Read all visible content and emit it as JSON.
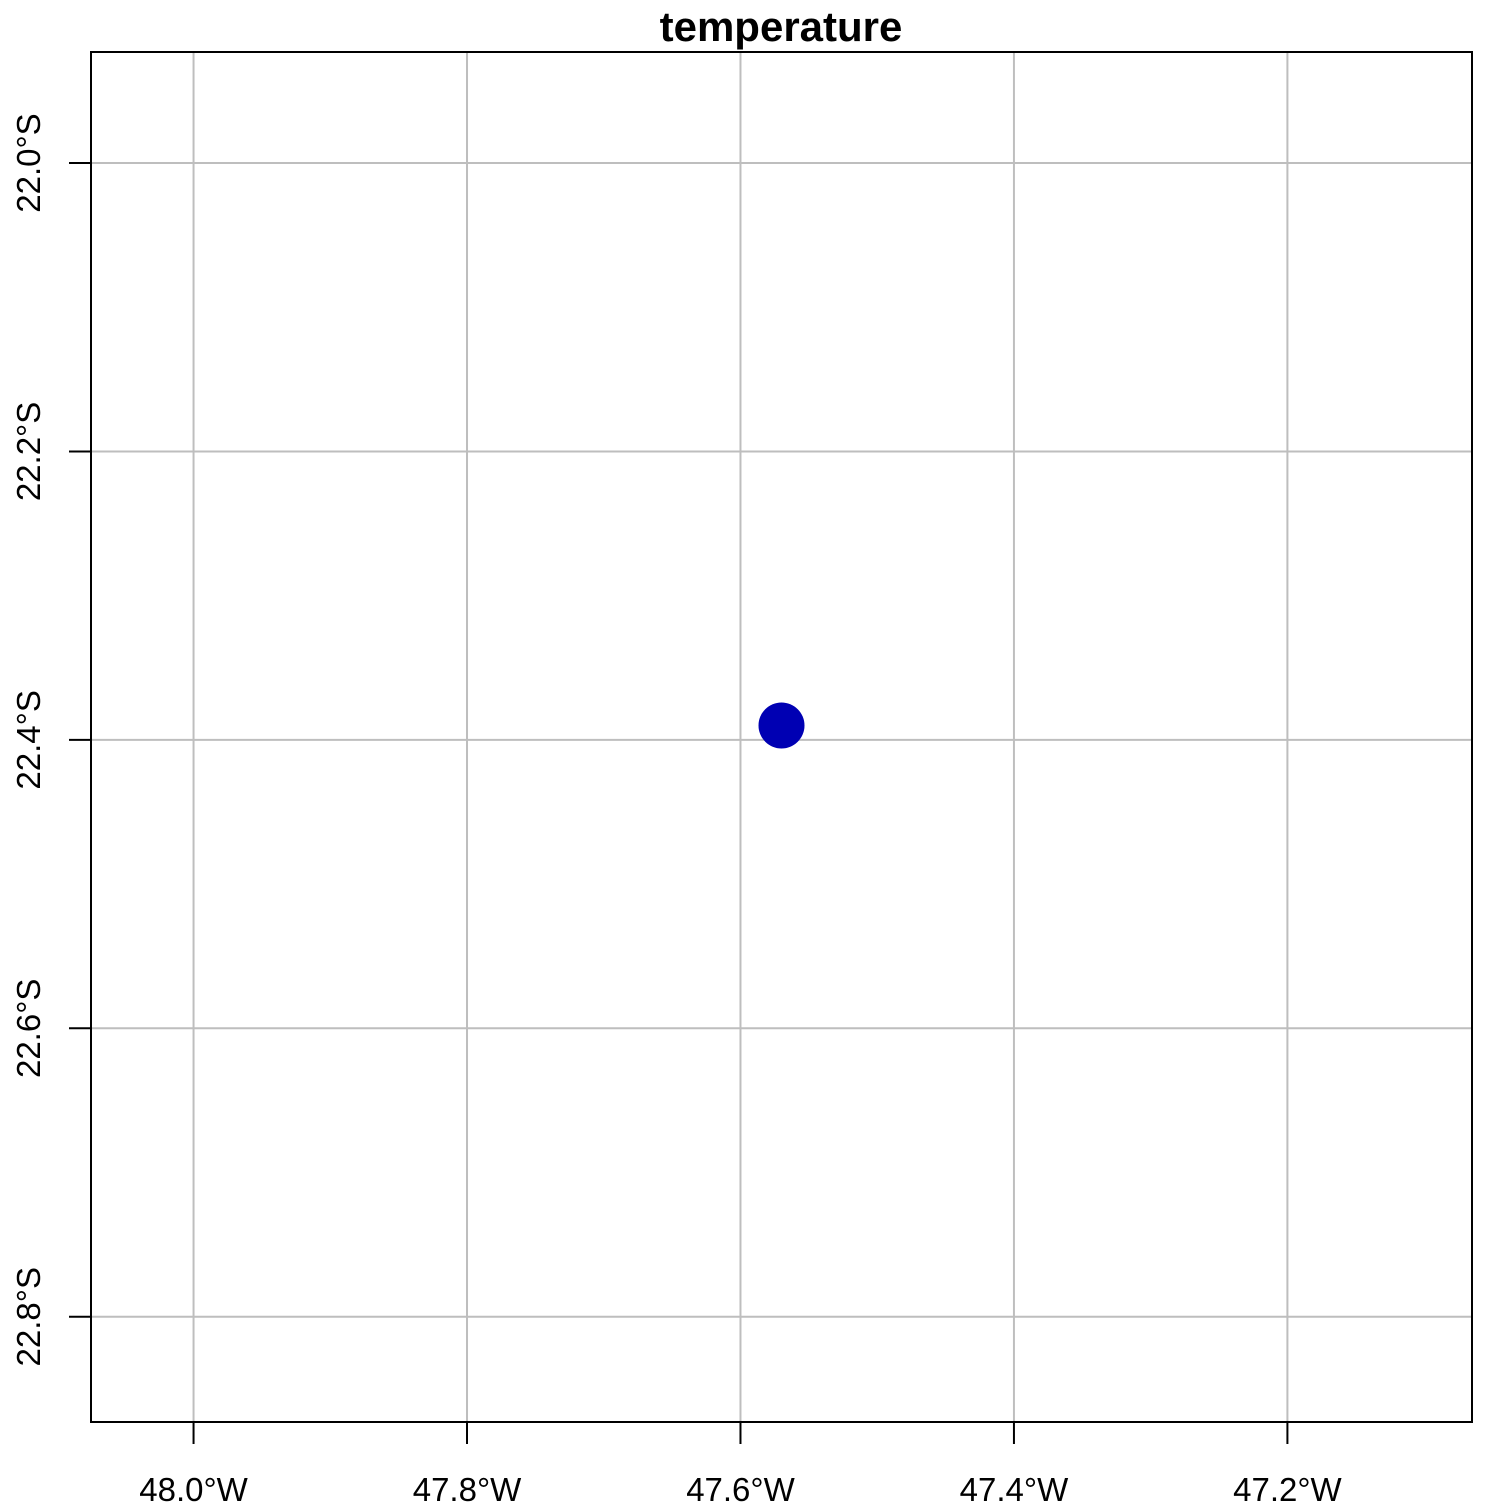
{
  "chart_data": {
    "type": "scatter",
    "title": "temperature",
    "xlabel": "",
    "ylabel": "",
    "xlim": [
      -48.075,
      -47.065
    ],
    "ylim": [
      -22.873,
      -21.923
    ],
    "grid": true,
    "x_ticks": [
      {
        "value": -48.0,
        "label": "48.0°W"
      },
      {
        "value": -47.8,
        "label": "47.8°W"
      },
      {
        "value": -47.6,
        "label": "47.6°W"
      },
      {
        "value": -47.4,
        "label": "47.4°W"
      },
      {
        "value": -47.2,
        "label": "47.2°W"
      }
    ],
    "y_ticks": [
      {
        "value": -22.0,
        "label": "22.0°S"
      },
      {
        "value": -22.2,
        "label": "22.2°S"
      },
      {
        "value": -22.4,
        "label": "22.4°S"
      },
      {
        "value": -22.6,
        "label": "22.6°S"
      },
      {
        "value": -22.8,
        "label": "22.8°S"
      }
    ],
    "points": [
      {
        "x": -47.57,
        "y": -22.39
      }
    ],
    "colors": {
      "point": "#0000B3",
      "grid": "#BEBEBE",
      "axis": "#000000"
    }
  }
}
